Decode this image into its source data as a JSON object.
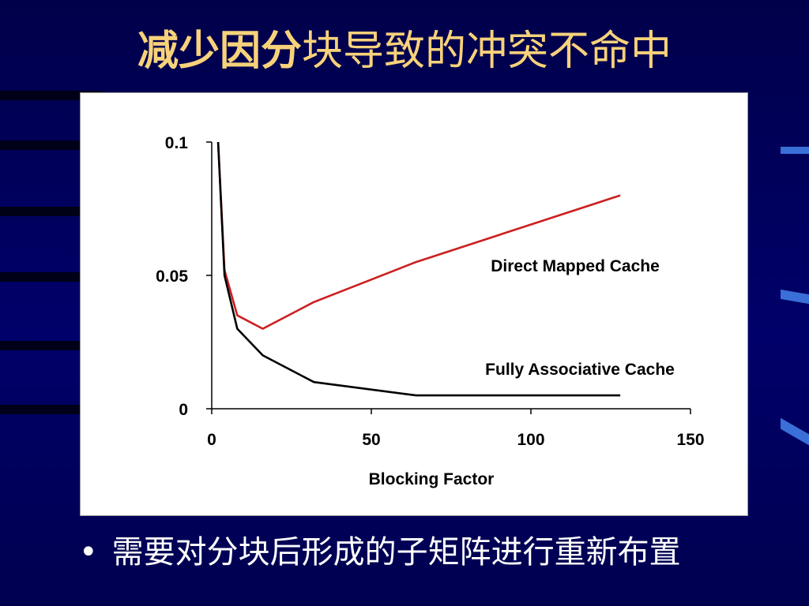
{
  "slide": {
    "title_bold": "减少因分",
    "title_rest": "块导致的冲突不命中",
    "bullet": "需要对分块后形成的子矩阵进行重新布置"
  },
  "chart_data": {
    "type": "line",
    "xlabel": "Blocking Factor",
    "ylabel": "",
    "xlim": [
      0,
      150
    ],
    "ylim": [
      0,
      0.1
    ],
    "x_ticks": [
      0,
      50,
      100,
      150
    ],
    "x_tick_labels": [
      "0",
      "50",
      "100",
      "150"
    ],
    "y_ticks": [
      0,
      0.05,
      0.1
    ],
    "y_tick_labels": [
      "0",
      "0.05",
      "0.1"
    ],
    "grid": false,
    "series": [
      {
        "name": "Direct Mapped Cache",
        "color": "#cc1f1f",
        "x": [
          2,
          4,
          8,
          16,
          32,
          64,
          128
        ],
        "y": [
          0.1,
          0.052,
          0.035,
          0.03,
          0.04,
          0.055,
          0.08
        ]
      },
      {
        "name": "Fully Associative Cache",
        "color": "#000000",
        "x": [
          2,
          4,
          8,
          16,
          32,
          64,
          128
        ],
        "y": [
          0.1,
          0.05,
          0.03,
          0.02,
          0.01,
          0.005,
          0.005
        ]
      }
    ]
  }
}
